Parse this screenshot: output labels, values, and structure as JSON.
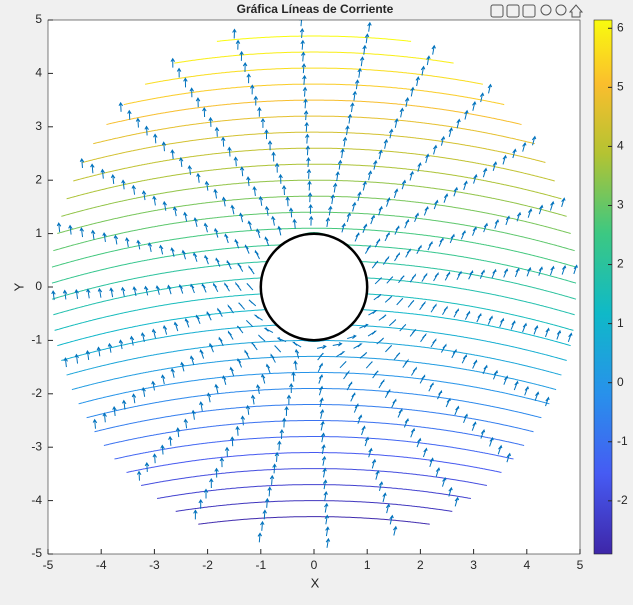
{
  "chart_data": {
    "type": "contour",
    "title": "Gráfica Líneas de Corriente",
    "x_label": "X",
    "y_label": "Y",
    "xlim": [
      -5,
      5
    ],
    "ylim": [
      -5,
      5
    ],
    "xticks": [
      -5,
      -4,
      -3,
      -2,
      -1,
      0,
      1,
      2,
      3,
      4,
      5
    ],
    "yticks": [
      -5,
      -4,
      -3,
      -2,
      -1,
      0,
      1,
      2,
      3,
      4,
      5
    ],
    "levels": [
      -2.8,
      -2.5,
      -2.2,
      -1.9,
      -1.6,
      -1.3,
      -1.0,
      -0.7,
      -0.4,
      -0.1,
      0.2,
      0.5,
      0.8,
      1.1,
      1.4,
      1.7,
      2.0,
      2.3,
      2.6,
      2.9,
      3.2,
      3.5,
      3.8,
      4.1,
      4.4,
      4.7,
      5.0,
      5.3,
      5.6,
      5.9,
      6.2
    ],
    "clim": [
      -2.9,
      6.14
    ],
    "colorbar_ticks": [
      -2,
      -1,
      0,
      1,
      2,
      3,
      4,
      5,
      6
    ],
    "colormap": "parula",
    "quiver_color": "#0072bd",
    "body_color": "#000000"
  }
}
